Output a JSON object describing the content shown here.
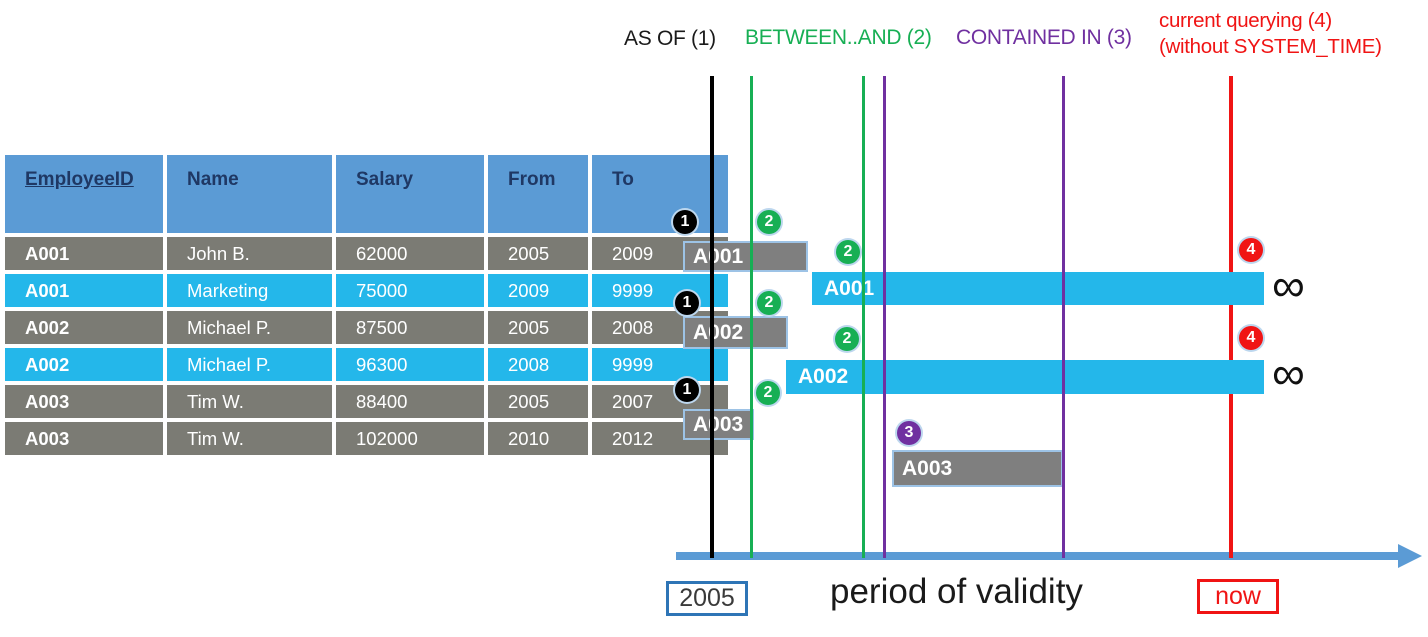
{
  "legend": {
    "as_of": "AS OF (1)",
    "between_and": "BETWEEN..AND (2)",
    "contained_in": "CONTAINED IN (3)",
    "current_querying_line1": "current querying (4)",
    "current_querying_line2": "(without SYSTEM_TIME)"
  },
  "table": {
    "headers": [
      "EmployeeID",
      "Name",
      "Salary",
      "From",
      "To"
    ],
    "rows": [
      [
        "A001",
        "John B.",
        "62000",
        "2005",
        "2009"
      ],
      [
        "A001",
        "Marketing",
        "75000",
        "2009",
        "9999"
      ],
      [
        "A002",
        "Michael P.",
        "87500",
        "2005",
        "2008"
      ],
      [
        "A002",
        "Michael P.",
        "96300",
        "2008",
        "9999"
      ],
      [
        "A003",
        "Tim W.",
        "88400",
        "2005",
        "2007"
      ],
      [
        "A003",
        "Tim W.",
        "102000",
        "2010",
        "2012"
      ]
    ],
    "row_variants": [
      "gray",
      "cyan",
      "gray",
      "cyan",
      "gray",
      "gray"
    ]
  },
  "timeline": {
    "bars": [
      {
        "label": "A001",
        "variant": "gray"
      },
      {
        "label": "A001",
        "variant": "cyan"
      },
      {
        "label": "A002",
        "variant": "gray"
      },
      {
        "label": "A002",
        "variant": "cyan"
      },
      {
        "label": "A003",
        "variant": "gray"
      },
      {
        "label": "A003",
        "variant": "gray"
      }
    ],
    "badges": [
      "1",
      "2",
      "2",
      "4",
      "1",
      "2",
      "2",
      "4",
      "1",
      "2",
      "3"
    ],
    "infinity": "∞",
    "axis": {
      "start_label": "2005",
      "title": "period of validity",
      "now_label": "now"
    }
  },
  "colors": {
    "as_of_black": "#000000",
    "between_green": "#17AF54",
    "contained_purple": "#7030A0",
    "current_red": "#F01414",
    "axis_blue": "#5B9BD5",
    "table_header_blue": "#5B9BD5",
    "header_text_navy": "#1F3864",
    "row_gray": "#7B7B74",
    "row_cyan": "#24B7EA",
    "bar_gray": "#7F7F7F",
    "bar_border_blue": "#9DC3E6",
    "start_box_border": "#2E75B6"
  }
}
